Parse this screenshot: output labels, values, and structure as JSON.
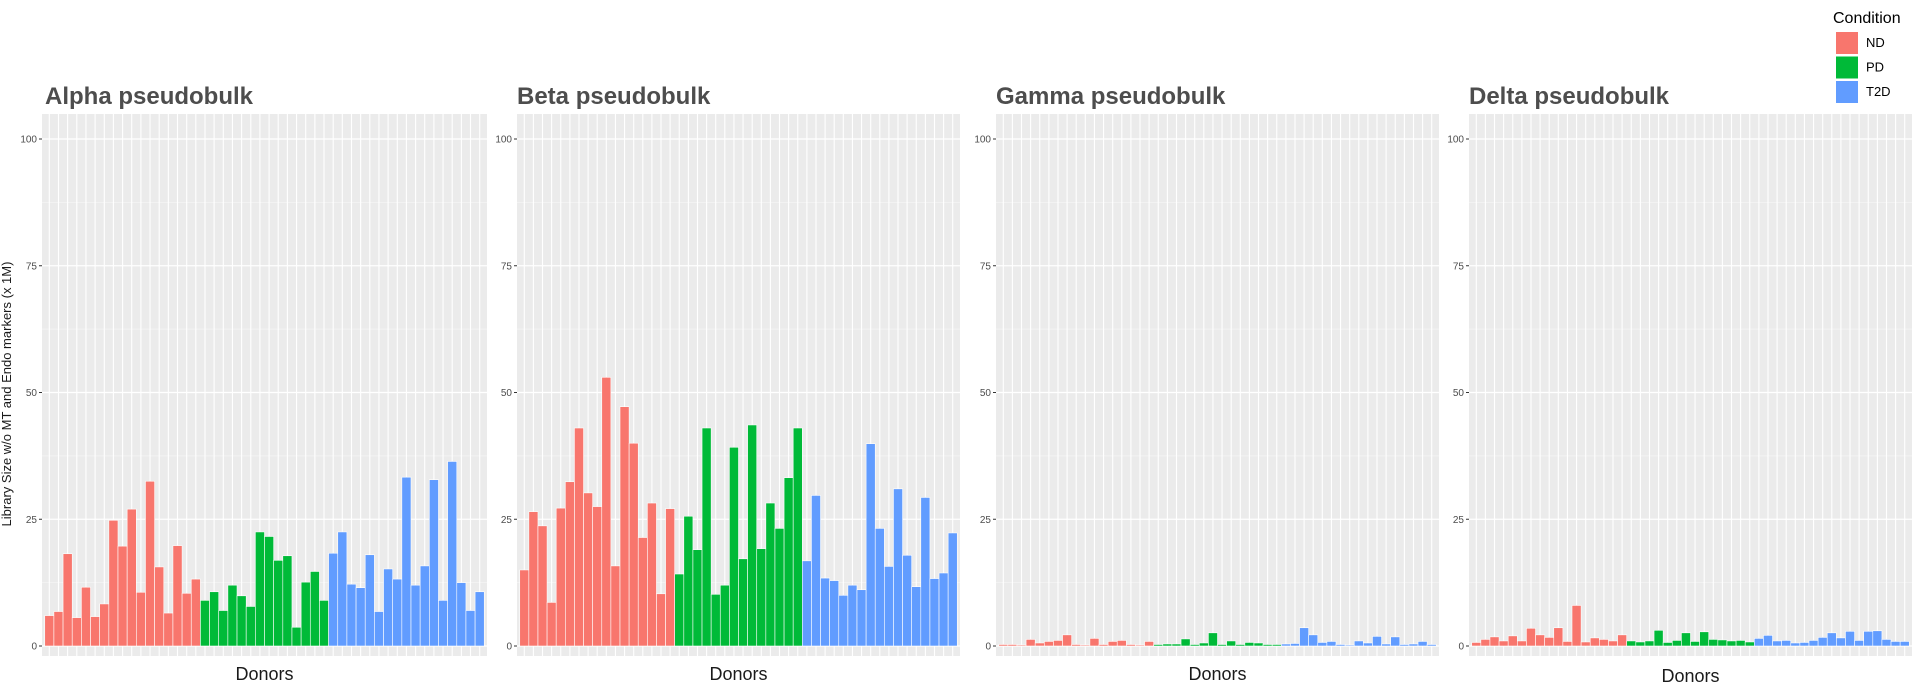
{
  "y_axis_label": "Library Size w/o MT and Endo markers (x 1M)",
  "legend": {
    "title": "Condition",
    "items": [
      {
        "label": "ND",
        "color": "#F8766D"
      },
      {
        "label": "PD",
        "color": "#00BA38"
      },
      {
        "label": "T2D",
        "color": "#619CFF"
      }
    ]
  },
  "chart_data": [
    {
      "type": "bar",
      "title": "Alpha pseudobulk",
      "xlabel": "Donors",
      "ylabel": "Library Size w/o MT and Endo markers (x 1M)",
      "ylim": [
        0,
        100
      ],
      "yticks": [
        0,
        25,
        50,
        75,
        100
      ],
      "series": [
        {
          "name": "ND",
          "values": [
            6,
            6.8,
            18.2,
            5.6,
            11.6,
            5.8,
            8.3,
            24.8,
            19.7,
            27,
            10.6,
            32.5,
            15.6,
            6.5,
            19.8,
            10.4,
            13.2
          ]
        },
        {
          "name": "PD",
          "values": [
            9,
            10.7,
            7,
            12,
            9.9,
            7.8,
            22.5,
            21.6,
            16.9,
            17.8,
            3.7,
            12.6,
            14.7,
            9
          ]
        },
        {
          "name": "T2D",
          "values": [
            18.3,
            22.5,
            12.2,
            11.5,
            18,
            6.8,
            15.2,
            13.2,
            33.3,
            12,
            15.8,
            32.8,
            9,
            36.4,
            12.5,
            7,
            10.7
          ]
        }
      ]
    },
    {
      "type": "bar",
      "title": "Beta pseudobulk",
      "xlabel": "Donors",
      "ylim": [
        0,
        100
      ],
      "yticks": [
        0,
        25,
        50,
        75,
        100
      ],
      "series": [
        {
          "name": "ND",
          "values": [
            15,
            26.5,
            23.7,
            8.6,
            27.2,
            32.4,
            43,
            30.2,
            27.5,
            53,
            15.8,
            47.2,
            40,
            21.4,
            28.2,
            10.3,
            27.1
          ]
        },
        {
          "name": "PD",
          "values": [
            14.2,
            25.6,
            19,
            43,
            10.2,
            12,
            39.2,
            17.2,
            43.6,
            19.2,
            28.2,
            23.2,
            33.2,
            43
          ]
        },
        {
          "name": "T2D",
          "values": [
            16.8,
            29.7,
            13.4,
            12.9,
            10,
            12,
            11.1,
            39.9,
            23.2,
            15.7,
            31,
            17.9,
            11.7,
            29.3,
            13.3,
            14.4,
            22.3
          ]
        }
      ]
    },
    {
      "type": "bar",
      "title": "Gamma pseudobulk",
      "xlabel": "Donors",
      "ylim": [
        0,
        100
      ],
      "yticks": [
        0,
        25,
        50,
        75,
        100
      ],
      "series": [
        {
          "name": "ND",
          "values": [
            0.3,
            0.3,
            0.2,
            1.3,
            0.6,
            0.9,
            1.1,
            2.2,
            0.3,
            0.2,
            1.5,
            0.3,
            0.9,
            1.1,
            0.3,
            0.2,
            0.9
          ]
        },
        {
          "name": "PD",
          "values": [
            0.3,
            0.4,
            0.4,
            1.4,
            0.3,
            0.6,
            2.6,
            0.3,
            1,
            0.3,
            0.7,
            0.6,
            0.3,
            0.3
          ]
        },
        {
          "name": "T2D",
          "values": [
            0.4,
            0.5,
            3.6,
            2.2,
            0.7,
            0.9,
            0.3,
            0.2,
            1,
            0.6,
            1.9,
            0.4,
            1.8,
            0.3,
            0.4,
            0.9,
            0.3
          ]
        }
      ]
    },
    {
      "type": "bar",
      "title": "Delta pseudobulk",
      "xlabel": "Donors",
      "ylim": [
        0,
        100
      ],
      "yticks": [
        0,
        25,
        50,
        75,
        100
      ],
      "series": [
        {
          "name": "ND",
          "values": [
            0.7,
            1.3,
            1.8,
            1,
            2,
            1,
            3.5,
            2.2,
            1.7,
            3.6,
            0.9,
            8,
            0.8,
            1.6,
            1.3,
            1,
            2.2
          ]
        },
        {
          "name": "PD",
          "values": [
            1,
            0.8,
            1,
            3.1,
            0.7,
            1.1,
            2.6,
            0.9,
            2.8,
            1.3,
            1.2,
            1,
            1.1,
            0.8
          ]
        },
        {
          "name": "T2D",
          "values": [
            1.5,
            2.1,
            1,
            1.1,
            0.6,
            0.7,
            1.1,
            1.7,
            2.6,
            1.6,
            2.9,
            1.1,
            2.9,
            3,
            1.3,
            0.9,
            0.9
          ]
        }
      ]
    }
  ]
}
